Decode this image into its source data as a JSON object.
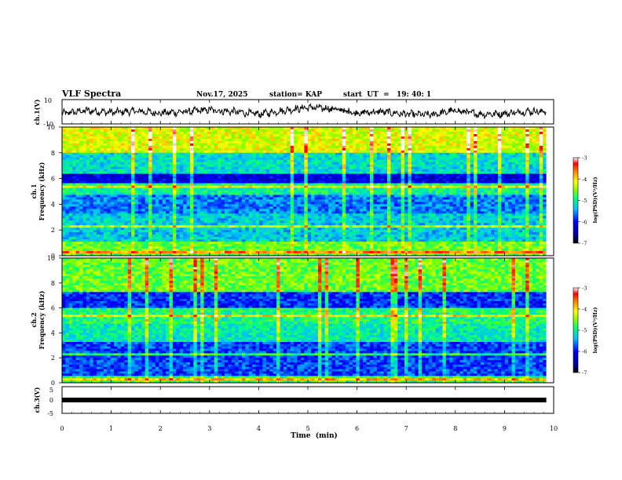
{
  "header": {
    "title": "VLF Spectra",
    "date": "Nov.17, 2025",
    "station": "station= KAP",
    "start_ut": "start  UT  =   19: 40: 1"
  },
  "chart_data": [
    {
      "type": "line",
      "panel": "ch1-waveform",
      "ylabel": "ch.1(V)",
      "ylim": [
        -10,
        10
      ],
      "yticks": [
        "10",
        "-10"
      ],
      "xlim": [
        0,
        10
      ],
      "description_series": "noisy waveform centred near 0 V, amplitude about ±4 V, stops at 9.85 min",
      "x": [
        0,
        0.5,
        1,
        1.5,
        2,
        2.5,
        3,
        3.5,
        4,
        4.5,
        5,
        5.5,
        6,
        6.5,
        7,
        7.5,
        8,
        8.5,
        9,
        9.5,
        9.85
      ],
      "y": [
        -1.5,
        1,
        -0.5,
        0.5,
        -1,
        0,
        1.5,
        0,
        -2,
        1,
        3.5,
        2.5,
        -1,
        0,
        -2,
        -2.5,
        1,
        -2,
        -1.5,
        0.5,
        0
      ]
    },
    {
      "type": "heatmap",
      "panel": "ch1-spectrogram",
      "ylabel": "ch.1\nFrequency  (kHz)",
      "ylim": [
        0,
        10
      ],
      "yticks": [
        "0",
        "2",
        "4",
        "6",
        "8",
        "10"
      ],
      "xlim": [
        0,
        10
      ],
      "data_end_min": 9.85,
      "colorbar": {
        "label": "log(PSD)(V²/Hz)",
        "range": [
          -7,
          -3
        ],
        "ticks": [
          "-3",
          "-4",
          "-5",
          "-6",
          "-7"
        ]
      },
      "bands": [
        {
          "from_khz": 0,
          "to_khz": 1.1,
          "level": -4.6
        },
        {
          "from_khz": 1.1,
          "to_khz": 3.2,
          "level": -5.3
        },
        {
          "from_khz": 3.2,
          "to_khz": 4.8,
          "level": -5.6
        },
        {
          "from_khz": 4.8,
          "to_khz": 5.6,
          "level": -5.0
        },
        {
          "from_khz": 5.6,
          "to_khz": 6.4,
          "level": -6.2
        },
        {
          "from_khz": 6.4,
          "to_khz": 8.0,
          "level": -5.2
        },
        {
          "from_khz": 8.0,
          "to_khz": 10,
          "level": -4.2
        }
      ]
    },
    {
      "type": "heatmap",
      "panel": "ch2-spectrogram",
      "ylabel": "ch.2\nFrequency  (kHz)",
      "ylim": [
        0,
        10
      ],
      "yticks": [
        "0",
        "2",
        "4",
        "6",
        "8",
        "10"
      ],
      "xlim": [
        0,
        10
      ],
      "data_end_min": 9.85,
      "colorbar": {
        "label": "log(PSD)(V²/Hz)",
        "range": [
          -7,
          -3
        ],
        "ticks": [
          "-3",
          "-4",
          "-5",
          "-6",
          "-7"
        ]
      },
      "bands": [
        {
          "from_khz": 0,
          "to_khz": 0.6,
          "level": -4.8
        },
        {
          "from_khz": 0.6,
          "to_khz": 3.2,
          "level": -5.8
        },
        {
          "from_khz": 3.2,
          "to_khz": 4.8,
          "level": -5.1
        },
        {
          "from_khz": 4.8,
          "to_khz": 6.0,
          "level": -4.9
        },
        {
          "from_khz": 6.0,
          "to_khz": 7.2,
          "level": -5.9
        },
        {
          "from_khz": 7.2,
          "to_khz": 10,
          "level": -4.6
        }
      ]
    },
    {
      "type": "line",
      "panel": "ch3-waveform",
      "ylabel": "ch.3(V)",
      "ylim": [
        -5,
        5
      ],
      "yticks": [
        "5",
        "0",
        "-5"
      ],
      "xlim": [
        0,
        10
      ],
      "xlabel": "Time  (min)",
      "xticks": [
        "0",
        "1",
        "2",
        "3",
        "4",
        "5",
        "6",
        "7",
        "8",
        "9",
        "10"
      ],
      "description_series": "saturated flat band near 0 V",
      "x": [
        0,
        9.85
      ],
      "y": [
        0,
        0
      ]
    }
  ],
  "colors": {
    "scale": [
      "#000080",
      "#0000ff",
      "#00bfff",
      "#00ff7f",
      "#7fff00",
      "#ffff00",
      "#ff8000",
      "#ff0000",
      "#ffffff"
    ]
  }
}
